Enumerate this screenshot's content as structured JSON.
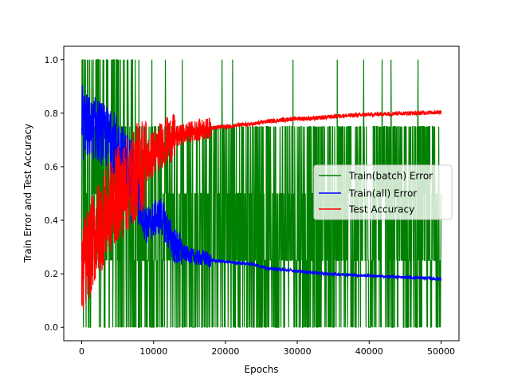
{
  "chart_data": {
    "type": "line",
    "title": "",
    "xlabel": "Epochs",
    "ylabel": "Train Error and Test Accuracy",
    "xlim": [
      -2500,
      52500
    ],
    "ylim": [
      -0.05,
      1.05
    ],
    "xticks": [
      0,
      10000,
      20000,
      30000,
      40000,
      50000
    ],
    "xtick_labels": [
      "0",
      "10000",
      "20000",
      "30000",
      "40000",
      "50000"
    ],
    "yticks": [
      0.0,
      0.2,
      0.4,
      0.6,
      0.8,
      1.0
    ],
    "ytick_labels": [
      "0.0",
      "0.2",
      "0.4",
      "0.6",
      "0.8",
      "1.0"
    ],
    "grid": false,
    "legend_position": "center-right",
    "series": [
      {
        "name": "Train(batch) Error",
        "color": "#008000",
        "x": [
          0,
          2500,
          5000,
          7500,
          10000,
          12500,
          15000,
          17500,
          20000,
          25000,
          30000,
          35000,
          40000,
          45000,
          50000
        ],
        "values": [
          0.0,
          1.0,
          0.0,
          1.0,
          0.0,
          0.75,
          0.0,
          0.75,
          0.0,
          0.75,
          0.0,
          0.75,
          0.0,
          0.75,
          0.0
        ],
        "description_range": [
          0.0,
          1.0
        ]
      },
      {
        "name": "Train(all) Error",
        "color": "#0000ff",
        "x": [
          0,
          500,
          1000,
          2000,
          3000,
          4000,
          5000,
          6000,
          7000,
          8000,
          9000,
          10000,
          11000,
          12000,
          13000,
          14000,
          15000,
          16000,
          17000,
          18000,
          20000,
          22000,
          24000,
          26000,
          28000,
          30000,
          32000,
          34000,
          36000,
          38000,
          40000,
          42000,
          44000,
          46000,
          48000,
          50000
        ],
        "values": [
          0.82,
          0.76,
          0.75,
          0.74,
          0.72,
          0.7,
          0.68,
          0.62,
          0.6,
          0.45,
          0.38,
          0.4,
          0.42,
          0.36,
          0.3,
          0.28,
          0.27,
          0.26,
          0.26,
          0.25,
          0.245,
          0.24,
          0.235,
          0.22,
          0.215,
          0.21,
          0.205,
          0.2,
          0.198,
          0.195,
          0.193,
          0.19,
          0.188,
          0.186,
          0.184,
          0.18
        ]
      },
      {
        "name": "Test Accuracy",
        "color": "#ff0000",
        "x": [
          0,
          500,
          1000,
          2000,
          3000,
          4000,
          5000,
          6000,
          7000,
          8000,
          9000,
          10000,
          11000,
          12000,
          13000,
          14000,
          15000,
          16000,
          17000,
          18000,
          20000,
          22000,
          24000,
          26000,
          28000,
          30000,
          32000,
          34000,
          36000,
          38000,
          40000,
          42000,
          44000,
          46000,
          48000,
          50000
        ],
        "values": [
          0.19,
          0.25,
          0.28,
          0.35,
          0.4,
          0.45,
          0.5,
          0.52,
          0.55,
          0.6,
          0.62,
          0.65,
          0.68,
          0.7,
          0.71,
          0.72,
          0.73,
          0.735,
          0.74,
          0.745,
          0.75,
          0.755,
          0.76,
          0.77,
          0.775,
          0.78,
          0.78,
          0.785,
          0.79,
          0.792,
          0.795,
          0.797,
          0.8,
          0.8,
          0.802,
          0.805
        ]
      }
    ]
  }
}
